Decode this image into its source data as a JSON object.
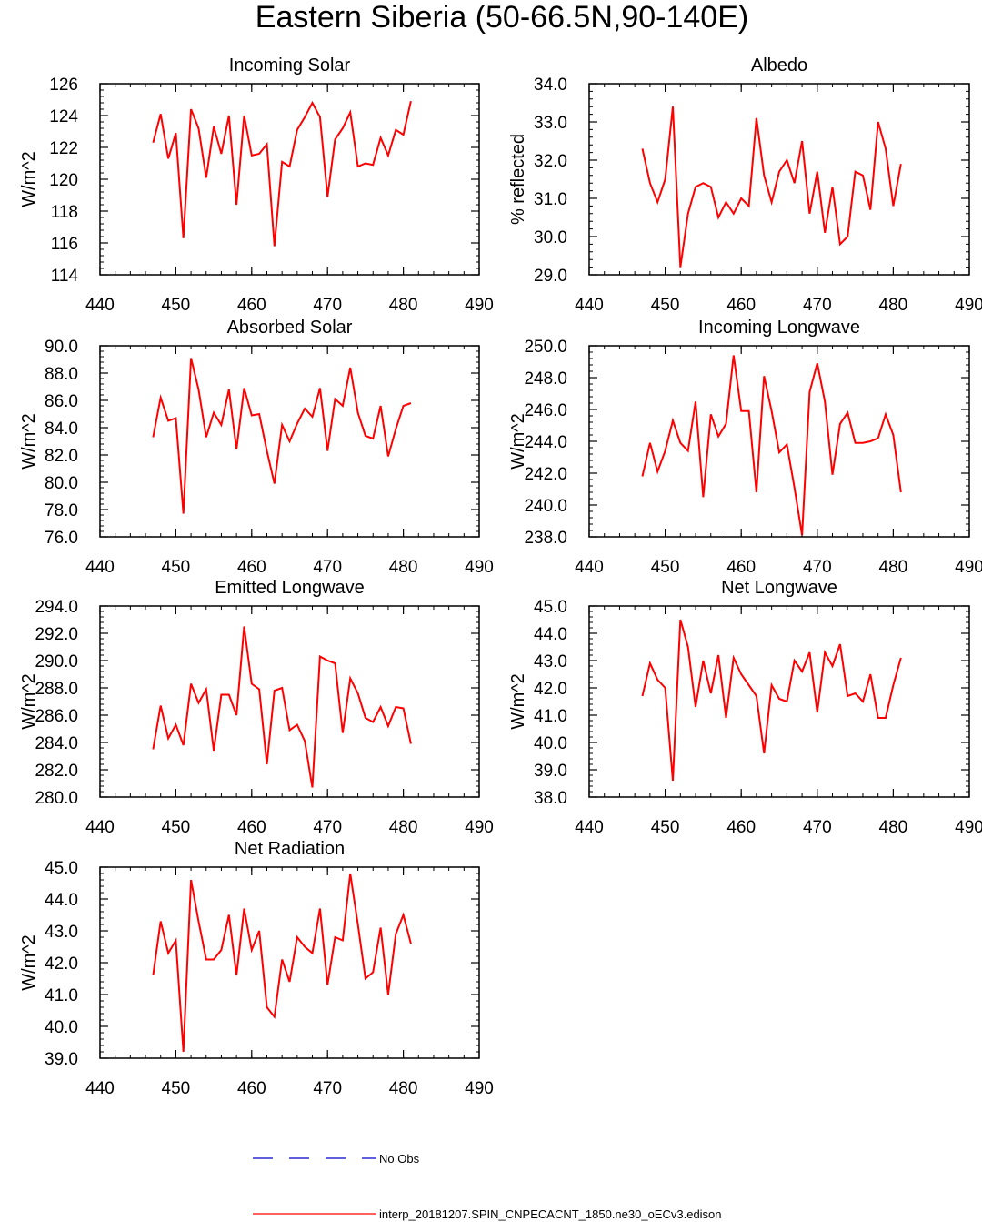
{
  "page_title": "Eastern Siberia (50-66.5N,90-140E)",
  "colors": {
    "series": "#ff0000",
    "obs": "#0000cc",
    "axis": "#000000"
  },
  "legend": {
    "obs_label": "No Obs",
    "model_label": "interp_20181207.SPIN_CNPECACNT_1850.ne30_oECv3.edison"
  },
  "chart_data": [
    {
      "type": "line",
      "title": "Incoming Solar",
      "xlabel": "",
      "ylabel": "W/m^2",
      "xlim": [
        440,
        490
      ],
      "ylim": [
        114,
        126
      ],
      "xticks": [
        "440",
        "450",
        "460",
        "470",
        "480",
        "490"
      ],
      "yticks": [
        "114",
        "116",
        "118",
        "120",
        "122",
        "124",
        "126"
      ],
      "x": [
        447,
        448,
        449,
        450,
        451,
        452,
        453,
        454,
        455,
        456,
        457,
        458,
        459,
        460,
        461,
        462,
        463,
        464,
        465,
        466,
        467,
        468,
        469,
        470,
        471,
        472,
        473,
        474,
        475,
        476,
        477,
        478,
        479,
        480,
        481
      ],
      "series": [
        {
          "values": [
            122.3,
            124.1,
            121.3,
            122.9,
            116.3,
            124.4,
            123.2,
            120.1,
            123.3,
            121.6,
            124.0,
            118.4,
            124.0,
            121.5,
            121.6,
            122.2,
            115.8,
            121.1,
            120.8,
            123.1,
            123.9,
            124.8,
            123.9,
            118.9,
            122.5,
            123.2,
            124.2,
            120.8,
            121.0,
            120.9,
            122.6,
            121.5,
            123.1,
            122.8,
            124.9
          ]
        }
      ]
    },
    {
      "type": "line",
      "title": "Albedo",
      "xlabel": "",
      "ylabel": "% reflected",
      "xlim": [
        440,
        490
      ],
      "ylim": [
        29.0,
        34.0
      ],
      "xticks": [
        "440",
        "450",
        "460",
        "470",
        "480",
        "490"
      ],
      "yticks": [
        "29.0",
        "30.0",
        "31.0",
        "32.0",
        "33.0",
        "34.0"
      ],
      "x": [
        447,
        448,
        449,
        450,
        451,
        452,
        453,
        454,
        455,
        456,
        457,
        458,
        459,
        460,
        461,
        462,
        463,
        464,
        465,
        466,
        467,
        468,
        469,
        470,
        471,
        472,
        473,
        474,
        475,
        476,
        477,
        478,
        479,
        480,
        481
      ],
      "series": [
        {
          "values": [
            32.3,
            31.4,
            30.9,
            31.5,
            33.4,
            29.2,
            30.6,
            31.3,
            31.4,
            31.3,
            30.5,
            30.9,
            30.6,
            31.0,
            30.8,
            33.1,
            31.6,
            30.9,
            31.7,
            32.0,
            31.4,
            32.5,
            30.6,
            31.7,
            30.1,
            31.3,
            29.8,
            30.0,
            31.7,
            31.6,
            30.7,
            33.0,
            32.3,
            30.8,
            31.9
          ]
        }
      ]
    },
    {
      "type": "line",
      "title": "Absorbed Solar",
      "xlabel": "",
      "ylabel": "W/m^2",
      "xlim": [
        440,
        490
      ],
      "ylim": [
        76.0,
        90.0
      ],
      "xticks": [
        "440",
        "450",
        "460",
        "470",
        "480",
        "490"
      ],
      "yticks": [
        "76.0",
        "78.0",
        "80.0",
        "82.0",
        "84.0",
        "86.0",
        "88.0",
        "90.0"
      ],
      "x": [
        447,
        448,
        449,
        450,
        451,
        452,
        453,
        454,
        455,
        456,
        457,
        458,
        459,
        460,
        461,
        462,
        463,
        464,
        465,
        466,
        467,
        468,
        469,
        470,
        471,
        472,
        473,
        474,
        475,
        476,
        477,
        478,
        479,
        480,
        481
      ],
      "series": [
        {
          "values": [
            83.3,
            86.2,
            84.5,
            84.7,
            77.7,
            89.1,
            86.8,
            83.3,
            85.1,
            84.2,
            86.8,
            82.4,
            86.9,
            84.9,
            85.0,
            82.3,
            79.9,
            84.2,
            83.0,
            84.3,
            85.4,
            84.8,
            86.9,
            82.3,
            86.1,
            85.6,
            88.4,
            85.1,
            83.4,
            83.2,
            85.6,
            81.9,
            83.9,
            85.6,
            85.8
          ]
        }
      ]
    },
    {
      "type": "line",
      "title": "Incoming Longwave",
      "xlabel": "",
      "ylabel": "W/m^2",
      "xlim": [
        440,
        490
      ],
      "ylim": [
        238.0,
        250.0
      ],
      "xticks": [
        "440",
        "450",
        "460",
        "470",
        "480",
        "490"
      ],
      "yticks": [
        "238.0",
        "240.0",
        "242.0",
        "244.0",
        "246.0",
        "248.0",
        "250.0"
      ],
      "x": [
        447,
        448,
        449,
        450,
        451,
        452,
        453,
        454,
        455,
        456,
        457,
        458,
        459,
        460,
        461,
        462,
        463,
        464,
        465,
        466,
        467,
        468,
        469,
        470,
        471,
        472,
        473,
        474,
        475,
        476,
        477,
        478,
        479,
        480,
        481
      ],
      "series": [
        {
          "values": [
            241.8,
            243.9,
            242.1,
            243.4,
            245.3,
            243.9,
            243.4,
            246.5,
            240.5,
            245.7,
            244.3,
            245.1,
            249.4,
            245.9,
            245.9,
            240.8,
            248.1,
            245.9,
            243.3,
            243.8,
            241.1,
            238.1,
            247.1,
            248.9,
            246.5,
            241.9,
            245.1,
            245.8,
            243.9,
            243.9,
            244.0,
            244.2,
            245.7,
            244.4,
            240.8
          ]
        }
      ]
    },
    {
      "type": "line",
      "title": "Emitted Longwave",
      "xlabel": "",
      "ylabel": "W/m^2",
      "xlim": [
        440,
        490
      ],
      "ylim": [
        280.0,
        294.0
      ],
      "xticks": [
        "440",
        "450",
        "460",
        "470",
        "480",
        "490"
      ],
      "yticks": [
        "280.0",
        "282.0",
        "284.0",
        "286.0",
        "288.0",
        "290.0",
        "292.0",
        "294.0"
      ],
      "x": [
        447,
        448,
        449,
        450,
        451,
        452,
        453,
        454,
        455,
        456,
        457,
        458,
        459,
        460,
        461,
        462,
        463,
        464,
        465,
        466,
        467,
        468,
        469,
        470,
        471,
        472,
        473,
        474,
        475,
        476,
        477,
        478,
        479,
        480,
        481
      ],
      "series": [
        {
          "values": [
            283.5,
            286.7,
            284.3,
            285.3,
            283.8,
            288.3,
            286.9,
            287.9,
            283.4,
            287.5,
            287.5,
            286.0,
            292.5,
            288.3,
            287.9,
            282.4,
            287.8,
            288.0,
            284.9,
            285.3,
            284.1,
            280.7,
            290.3,
            290.0,
            289.8,
            284.7,
            288.7,
            287.6,
            285.8,
            285.5,
            286.6,
            285.2,
            286.6,
            286.5,
            283.9
          ]
        }
      ]
    },
    {
      "type": "line",
      "title": "Net Longwave",
      "xlabel": "",
      "ylabel": "W/m^2",
      "xlim": [
        440,
        490
      ],
      "ylim": [
        38.0,
        45.0
      ],
      "xticks": [
        "440",
        "450",
        "460",
        "470",
        "480",
        "490"
      ],
      "yticks": [
        "38.0",
        "39.0",
        "40.0",
        "41.0",
        "42.0",
        "43.0",
        "44.0",
        "45.0"
      ],
      "x": [
        447,
        448,
        449,
        450,
        451,
        452,
        453,
        454,
        455,
        456,
        457,
        458,
        459,
        460,
        461,
        462,
        463,
        464,
        465,
        466,
        467,
        468,
        469,
        470,
        471,
        472,
        473,
        474,
        475,
        476,
        477,
        478,
        479,
        480,
        481
      ],
      "series": [
        {
          "values": [
            41.7,
            42.9,
            42.3,
            42.0,
            38.6,
            44.5,
            43.5,
            41.3,
            43.0,
            41.8,
            43.2,
            40.9,
            43.1,
            42.5,
            42.1,
            41.7,
            39.6,
            42.1,
            41.6,
            41.5,
            43.0,
            42.6,
            43.3,
            41.1,
            43.3,
            42.8,
            43.6,
            41.7,
            41.8,
            41.5,
            42.5,
            40.9,
            40.9,
            42.1,
            43.1
          ]
        }
      ]
    },
    {
      "type": "line",
      "title": "Net Radiation",
      "xlabel": "",
      "ylabel": "W/m^2",
      "xlim": [
        440,
        490
      ],
      "ylim": [
        39.0,
        45.0
      ],
      "xticks": [
        "440",
        "450",
        "460",
        "470",
        "480",
        "490"
      ],
      "yticks": [
        "39.0",
        "40.0",
        "41.0",
        "42.0",
        "43.0",
        "44.0",
        "45.0"
      ],
      "x": [
        447,
        448,
        449,
        450,
        451,
        452,
        453,
        454,
        455,
        456,
        457,
        458,
        459,
        460,
        461,
        462,
        463,
        464,
        465,
        466,
        467,
        468,
        469,
        470,
        471,
        472,
        473,
        474,
        475,
        476,
        477,
        478,
        479,
        480,
        481
      ],
      "series": [
        {
          "values": [
            41.6,
            43.3,
            42.3,
            42.7,
            39.2,
            44.6,
            43.3,
            42.1,
            42.1,
            42.4,
            43.5,
            41.6,
            43.7,
            42.4,
            43.0,
            40.6,
            40.3,
            42.1,
            41.4,
            42.8,
            42.5,
            42.3,
            43.7,
            41.3,
            42.8,
            42.7,
            44.8,
            43.2,
            41.5,
            41.7,
            43.1,
            41.0,
            42.9,
            43.5,
            42.6
          ]
        }
      ]
    }
  ]
}
